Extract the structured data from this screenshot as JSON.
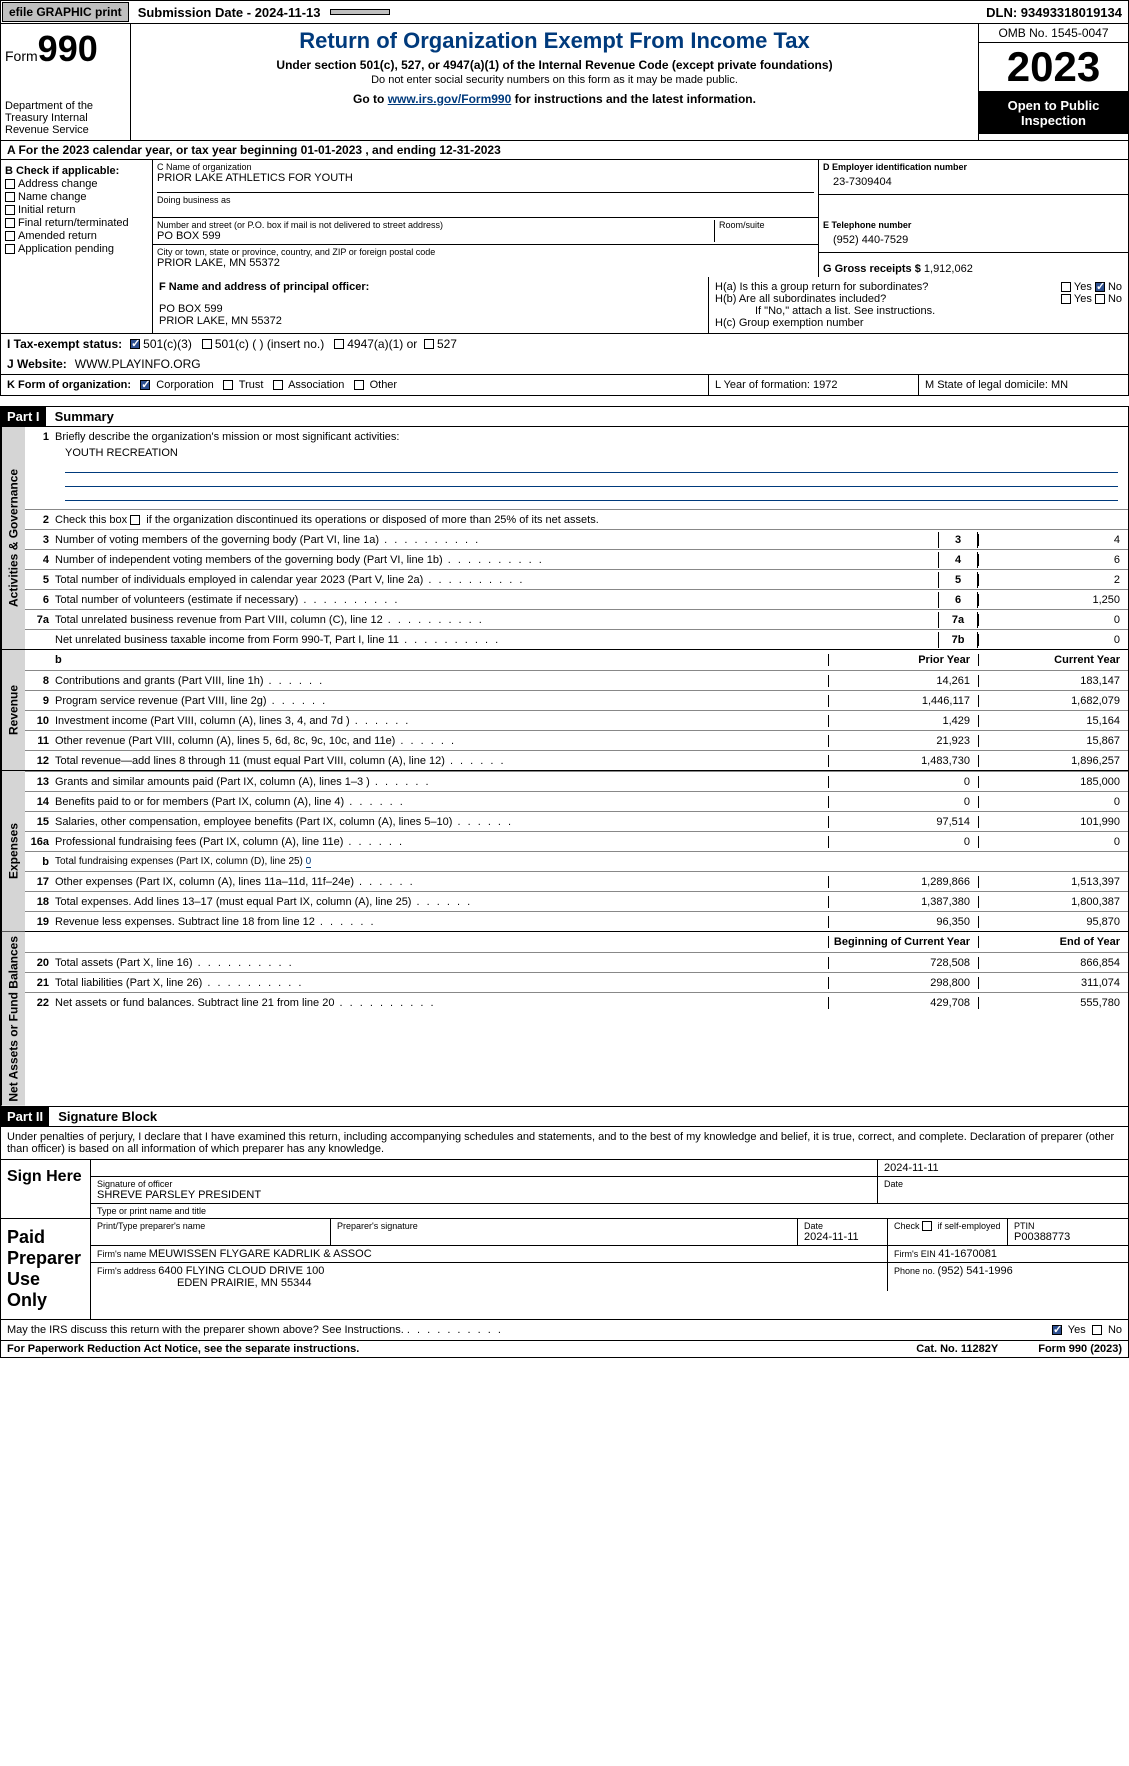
{
  "topbar": {
    "efile": "efile GRAPHIC print",
    "submission": "Submission Date - 2024-11-13",
    "dln": "DLN: 93493318019134"
  },
  "header": {
    "form_prefix": "Form",
    "form_num": "990",
    "dept": "Department of the Treasury Internal Revenue Service",
    "title": "Return of Organization Exempt From Income Tax",
    "subtitle": "Under section 501(c), 527, or 4947(a)(1) of the Internal Revenue Code (except private foundations)",
    "subtext": "Do not enter social security numbers on this form as it may be made public.",
    "goto_pre": "Go to ",
    "goto_link": "www.irs.gov/Form990",
    "goto_post": " for instructions and the latest information.",
    "omb": "OMB No. 1545-0047",
    "year": "2023",
    "open": "Open to Public Inspection"
  },
  "rowA": "A For the 2023 calendar year, or tax year beginning 01-01-2023   , and ending 12-31-2023",
  "colB": {
    "title": "B Check if applicable:",
    "opts": [
      "Address change",
      "Name change",
      "Initial return",
      "Final return/terminated",
      "Amended return",
      "Application pending"
    ]
  },
  "boxC": {
    "name_lbl": "C Name of organization",
    "name": "PRIOR LAKE ATHLETICS FOR YOUTH",
    "dba_lbl": "Doing business as",
    "addr_lbl": "Number and street (or P.O. box if mail is not delivered to street address)",
    "room_lbl": "Room/suite",
    "addr": "PO BOX 599",
    "city_lbl": "City or town, state or province, country, and ZIP or foreign postal code",
    "city": "PRIOR LAKE, MN  55372"
  },
  "boxD": {
    "lbl": "D Employer identification number",
    "val": "23-7309404"
  },
  "boxE": {
    "lbl": "E Telephone number",
    "val": "(952) 440-7529"
  },
  "boxG": {
    "lbl": "G Gross receipts $ ",
    "val": "1,912,062"
  },
  "boxF": {
    "lbl": "F  Name and address of principal officer:",
    "line1": "PO BOX 599",
    "line2": "PRIOR LAKE, MN  55372"
  },
  "boxH": {
    "a_lbl": "H(a)  Is this a group return for subordinates?",
    "b_lbl": "H(b)  Are all subordinates included?",
    "b_note": "If \"No,\" attach a list. See instructions.",
    "c_lbl": "H(c)  Group exemption number "
  },
  "rowI": {
    "lbl": "I   Tax-exempt status:",
    "o1": "501(c)(3)",
    "o2": "501(c) (  ) (insert no.)",
    "o3": "4947(a)(1) or",
    "o4": "527"
  },
  "rowJ": {
    "lbl": "J   Website: ",
    "val": " WWW.PLAYINFO.ORG"
  },
  "rowK": {
    "lbl": "K Form of organization:",
    "o1": "Corporation",
    "o2": "Trust",
    "o3": "Association",
    "o4": "Other",
    "L": "L Year of formation: 1972",
    "M": "M State of legal domicile: MN"
  },
  "part1": {
    "hdr": "Part I",
    "title": "Summary",
    "side_gov": "Activities & Governance",
    "side_rev": "Revenue",
    "side_exp": "Expenses",
    "side_net": "Net Assets or Fund Balances",
    "l1": "Briefly describe the organization's mission or most significant activities:",
    "mission": "YOUTH RECREATION",
    "l2": "Check this box        if the organization discontinued its operations or disposed of more than 25% of its net assets.",
    "lines_gov": [
      {
        "n": "3",
        "d": "Number of voting members of the governing body (Part VI, line 1a)",
        "box": "3",
        "v": "4"
      },
      {
        "n": "4",
        "d": "Number of independent voting members of the governing body (Part VI, line 1b)",
        "box": "4",
        "v": "6"
      },
      {
        "n": "5",
        "d": "Total number of individuals employed in calendar year 2023 (Part V, line 2a)",
        "box": "5",
        "v": "2"
      },
      {
        "n": "6",
        "d": "Total number of volunteers (estimate if necessary)",
        "box": "6",
        "v": "1,250"
      },
      {
        "n": "7a",
        "d": "Total unrelated business revenue from Part VIII, column (C), line 12",
        "box": "7a",
        "v": "0"
      },
      {
        "n": "",
        "d": "Net unrelated business taxable income from Form 990-T, Part I, line 11",
        "box": "7b",
        "v": "0"
      }
    ],
    "hdr_prior": "Prior Year",
    "hdr_curr": "Current Year",
    "lines_rev": [
      {
        "n": "8",
        "d": "Contributions and grants (Part VIII, line 1h)",
        "p": "14,261",
        "c": "183,147"
      },
      {
        "n": "9",
        "d": "Program service revenue (Part VIII, line 2g)",
        "p": "1,446,117",
        "c": "1,682,079"
      },
      {
        "n": "10",
        "d": "Investment income (Part VIII, column (A), lines 3, 4, and 7d )",
        "p": "1,429",
        "c": "15,164"
      },
      {
        "n": "11",
        "d": "Other revenue (Part VIII, column (A), lines 5, 6d, 8c, 9c, 10c, and 11e)",
        "p": "21,923",
        "c": "15,867"
      },
      {
        "n": "12",
        "d": "Total revenue—add lines 8 through 11 (must equal Part VIII, column (A), line 12)",
        "p": "1,483,730",
        "c": "1,896,257"
      }
    ],
    "lines_exp": [
      {
        "n": "13",
        "d": "Grants and similar amounts paid (Part IX, column (A), lines 1–3 )",
        "p": "0",
        "c": "185,000"
      },
      {
        "n": "14",
        "d": "Benefits paid to or for members (Part IX, column (A), line 4)",
        "p": "0",
        "c": "0"
      },
      {
        "n": "15",
        "d": "Salaries, other compensation, employee benefits (Part IX, column (A), lines 5–10)",
        "p": "97,514",
        "c": "101,990"
      },
      {
        "n": "16a",
        "d": "Professional fundraising fees (Part IX, column (A), line 11e)",
        "p": "0",
        "c": "0"
      },
      {
        "n": "b",
        "d": "Total fundraising expenses (Part IX, column (D), line 25) ",
        "fund": "0",
        "grey": true
      },
      {
        "n": "17",
        "d": "Other expenses (Part IX, column (A), lines 11a–11d, 11f–24e)",
        "p": "1,289,866",
        "c": "1,513,397"
      },
      {
        "n": "18",
        "d": "Total expenses. Add lines 13–17 (must equal Part IX, column (A), line 25)",
        "p": "1,387,380",
        "c": "1,800,387"
      },
      {
        "n": "19",
        "d": "Revenue less expenses. Subtract line 18 from line 12",
        "p": "96,350",
        "c": "95,870"
      }
    ],
    "hdr_beg": "Beginning of Current Year",
    "hdr_end": "End of Year",
    "lines_net": [
      {
        "n": "20",
        "d": "Total assets (Part X, line 16)",
        "p": "728,508",
        "c": "866,854"
      },
      {
        "n": "21",
        "d": "Total liabilities (Part X, line 26)",
        "p": "298,800",
        "c": "311,074"
      },
      {
        "n": "22",
        "d": "Net assets or fund balances. Subtract line 21 from line 20",
        "p": "429,708",
        "c": "555,780"
      }
    ]
  },
  "part2": {
    "hdr": "Part II",
    "title": "Signature Block",
    "declare": "Under penalties of perjury, I declare that I have examined this return, including accompanying schedules and statements, and to the best of my knowledge and belief, it is true, correct, and complete. Declaration of preparer (other than officer) is based on all information of which preparer has any knowledge.",
    "sign_here": "Sign Here",
    "sig_date": "2024-11-11",
    "sig_off_lbl": "Signature of officer",
    "sig_off": "SHREVE PARSLEY  PRESIDENT",
    "sig_type_lbl": "Type or print name and title",
    "date_lbl": "Date",
    "paid": "Paid Preparer Use Only",
    "prep_name_lbl": "Print/Type preparer's name",
    "prep_sig_lbl": "Preparer's signature",
    "prep_date": "2024-11-11",
    "prep_check": "Check         if self-employed",
    "ptin_lbl": "PTIN",
    "ptin": "P00388773",
    "firm_name_lbl": "Firm's name   ",
    "firm_name": "MEUWISSEN FLYGARE KADRLIK & ASSOC",
    "firm_ein_lbl": "Firm's EIN  ",
    "firm_ein": "41-1670081",
    "firm_addr_lbl": "Firm's address ",
    "firm_addr1": "6400 FLYING CLOUD DRIVE 100",
    "firm_addr2": "EDEN PRAIRIE, MN  55344",
    "firm_phone_lbl": "Phone no. ",
    "firm_phone": "(952) 541-1996",
    "discuss": "May the IRS discuss this return with the preparer shown above? See Instructions."
  },
  "footer": {
    "left": "For Paperwork Reduction Act Notice, see the separate instructions.",
    "mid": "Cat. No. 11282Y",
    "right": "Form 990 (2023)"
  },
  "yn": {
    "yes": "Yes",
    "no": "No"
  }
}
